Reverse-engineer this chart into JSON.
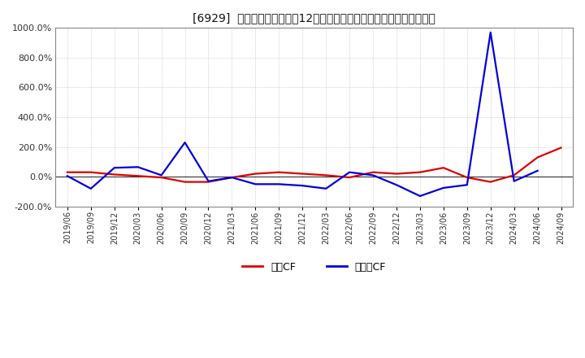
{
  "title": "[6929]  キャッシュフローの12か月移動合計の対前年同期増減率の推移",
  "background_color": "#ffffff",
  "plot_bg_color": "#ffffff",
  "grid_color": "#aaaaaa",
  "legend_labels": [
    "営業CF",
    "フリーCF"
  ],
  "line_colors": [
    "#dd0000",
    "#0000dd"
  ],
  "ylim": [
    -200,
    1000
  ],
  "yticks": [
    -200,
    0,
    200,
    400,
    600,
    800,
    1000
  ],
  "dates": [
    "2019/06",
    "2019/09",
    "2019/12",
    "2020/03",
    "2020/06",
    "2020/09",
    "2020/12",
    "2021/03",
    "2021/06",
    "2021/09",
    "2021/12",
    "2022/03",
    "2022/06",
    "2022/09",
    "2022/12",
    "2023/03",
    "2023/06",
    "2023/09",
    "2023/12",
    "2024/03",
    "2024/06",
    "2024/09"
  ],
  "sales_cf": [
    30,
    30,
    15,
    5,
    -5,
    -35,
    -35,
    -5,
    20,
    30,
    20,
    10,
    -5,
    30,
    20,
    30,
    60,
    -5,
    -35,
    10,
    130,
    195
  ],
  "free_cf": [
    5,
    -80,
    60,
    65,
    10,
    230,
    -30,
    -5,
    -50,
    -50,
    -60,
    -80,
    30,
    10,
    -55,
    -130,
    -75,
    -55,
    970,
    -30,
    40,
    null
  ]
}
